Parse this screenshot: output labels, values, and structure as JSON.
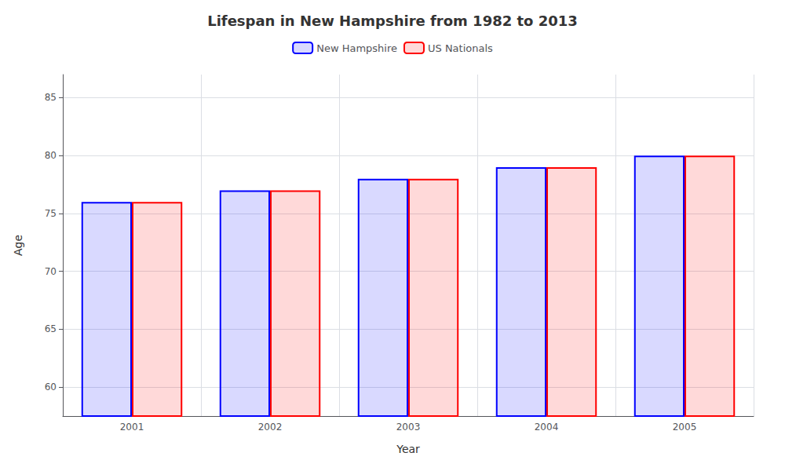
{
  "chart_data": {
    "type": "bar",
    "title": "Lifespan in New Hampshire from 1982 to 2013",
    "xlabel": "Year",
    "ylabel": "Age",
    "categories": [
      "2001",
      "2002",
      "2003",
      "2004",
      "2005"
    ],
    "series": [
      {
        "name": "New Hampshire",
        "color": "#0000ff",
        "values": [
          76,
          77,
          78,
          79,
          80
        ]
      },
      {
        "name": "US Nationals",
        "color": "#ff0000",
        "values": [
          76,
          77,
          78,
          79,
          80
        ]
      }
    ],
    "ylim": [
      57.5,
      87
    ],
    "yticks": [
      60,
      65,
      70,
      75,
      80,
      85
    ],
    "grid": true,
    "legend": "top"
  }
}
